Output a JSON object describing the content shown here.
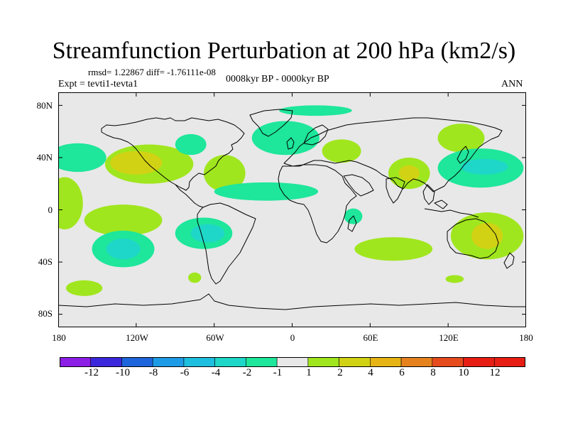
{
  "title": "Streamfunction Perturbation at 200 hPa (km2/s)",
  "stats": "rmsd= 1.22867 diff= -1.76111e-08",
  "experiment": "Expt = tevti1-tevta1",
  "period": "0008kyr BP - 0000kyr BP",
  "season": "ANN",
  "lat_ticks": [
    "80N",
    "40N",
    "0",
    "40S",
    "80S"
  ],
  "lon_ticks": [
    "180",
    "120W",
    "60W",
    "0",
    "60E",
    "120E",
    "180"
  ],
  "colorbar": {
    "labels": [
      "-12",
      "-10",
      "-8",
      "-6",
      "-4",
      "-2",
      "-1",
      "1",
      "2",
      "4",
      "6",
      "8",
      "10",
      "12"
    ],
    "colors": [
      "#8c1ee6",
      "#3c28dc",
      "#1e64dc",
      "#1e9be6",
      "#1ebede",
      "#1ed7c8",
      "#1ee69b",
      "#e8e8e8",
      "#a0e61e",
      "#d2d214",
      "#e6b414",
      "#e6821e",
      "#e64b1e",
      "#e61e14"
    ]
  },
  "regions": [
    {
      "name": "n-pacific-low",
      "lon": -165,
      "lat": 40,
      "rx": 22,
      "ry": 11,
      "level": -1
    },
    {
      "name": "n-america-high-outer",
      "lon": -110,
      "lat": 35,
      "rx": 34,
      "ry": 15,
      "level": 1
    },
    {
      "name": "n-america-high-inner",
      "lon": -120,
      "lat": 36,
      "rx": 20,
      "ry": 9,
      "level": 2
    },
    {
      "name": "canada-low",
      "lon": -78,
      "lat": 50,
      "rx": 12,
      "ry": 8,
      "level": -1
    },
    {
      "name": "n-atlantic-high",
      "lon": -52,
      "lat": 28,
      "rx": 16,
      "ry": 14,
      "level": 1
    },
    {
      "name": "europe-low",
      "lon": -5,
      "lat": 55,
      "rx": 26,
      "ry": 13,
      "level": -1
    },
    {
      "name": "arctic-low",
      "lon": 18,
      "lat": 76,
      "rx": 28,
      "ry": 4,
      "level": -1
    },
    {
      "name": "mideast-high",
      "lon": 38,
      "lat": 45,
      "rx": 15,
      "ry": 9,
      "level": 1
    },
    {
      "name": "asia-high-outer",
      "lon": 90,
      "lat": 28,
      "rx": 16,
      "ry": 12,
      "level": 1
    },
    {
      "name": "asia-high-inner",
      "lon": 90,
      "lat": 28,
      "rx": 8,
      "ry": 6,
      "level": 2
    },
    {
      "name": "siberia-high",
      "lon": 130,
      "lat": 55,
      "rx": 18,
      "ry": 11,
      "level": 1
    },
    {
      "name": "w-pacific-low-outer",
      "lon": 145,
      "lat": 32,
      "rx": 33,
      "ry": 15,
      "level": -1
    },
    {
      "name": "w-pacific-low-inner",
      "lon": 148,
      "lat": 33,
      "rx": 18,
      "ry": 6,
      "level": -2
    },
    {
      "name": "tropical-atl-low",
      "lon": -20,
      "lat": 14,
      "rx": 40,
      "ry": 7,
      "level": -1
    },
    {
      "name": "e-pacific-high",
      "lon": -175,
      "lat": 5,
      "rx": 14,
      "ry": 20,
      "level": 1
    },
    {
      "name": "s-pacific-high",
      "lon": -130,
      "lat": -8,
      "rx": 30,
      "ry": 12,
      "level": 1
    },
    {
      "name": "s-america-low-outer",
      "lon": -68,
      "lat": -18,
      "rx": 22,
      "ry": 12,
      "level": -1
    },
    {
      "name": "s-america-low-inner",
      "lon": -65,
      "lat": -18,
      "rx": 13,
      "ry": 7,
      "level": -2
    },
    {
      "name": "s-pacific-low-outer",
      "lon": -130,
      "lat": -30,
      "rx": 24,
      "ry": 14,
      "level": -1
    },
    {
      "name": "s-pacific-low-inner",
      "lon": -130,
      "lat": -30,
      "rx": 13,
      "ry": 8,
      "level": -2
    },
    {
      "name": "s-pacific-high-2",
      "lon": -160,
      "lat": -60,
      "rx": 14,
      "ry": 6,
      "level": 1
    },
    {
      "name": "patagonia-high",
      "lon": -75,
      "lat": -52,
      "rx": 5,
      "ry": 4,
      "level": 1
    },
    {
      "name": "africa-low",
      "lon": 47,
      "lat": -5,
      "rx": 7,
      "ry": 6,
      "level": -1
    },
    {
      "name": "indian-ocean-high",
      "lon": 78,
      "lat": -30,
      "rx": 30,
      "ry": 9,
      "level": 1
    },
    {
      "name": "s-ocean-high",
      "lon": 125,
      "lat": -53,
      "rx": 7,
      "ry": 3,
      "level": 1
    },
    {
      "name": "australia-high-outer",
      "lon": 150,
      "lat": -20,
      "rx": 28,
      "ry": 18,
      "level": 1
    },
    {
      "name": "australia-high-inner",
      "lon": 150,
      "lat": -20,
      "rx": 12,
      "ry": 10,
      "level": 2
    }
  ]
}
